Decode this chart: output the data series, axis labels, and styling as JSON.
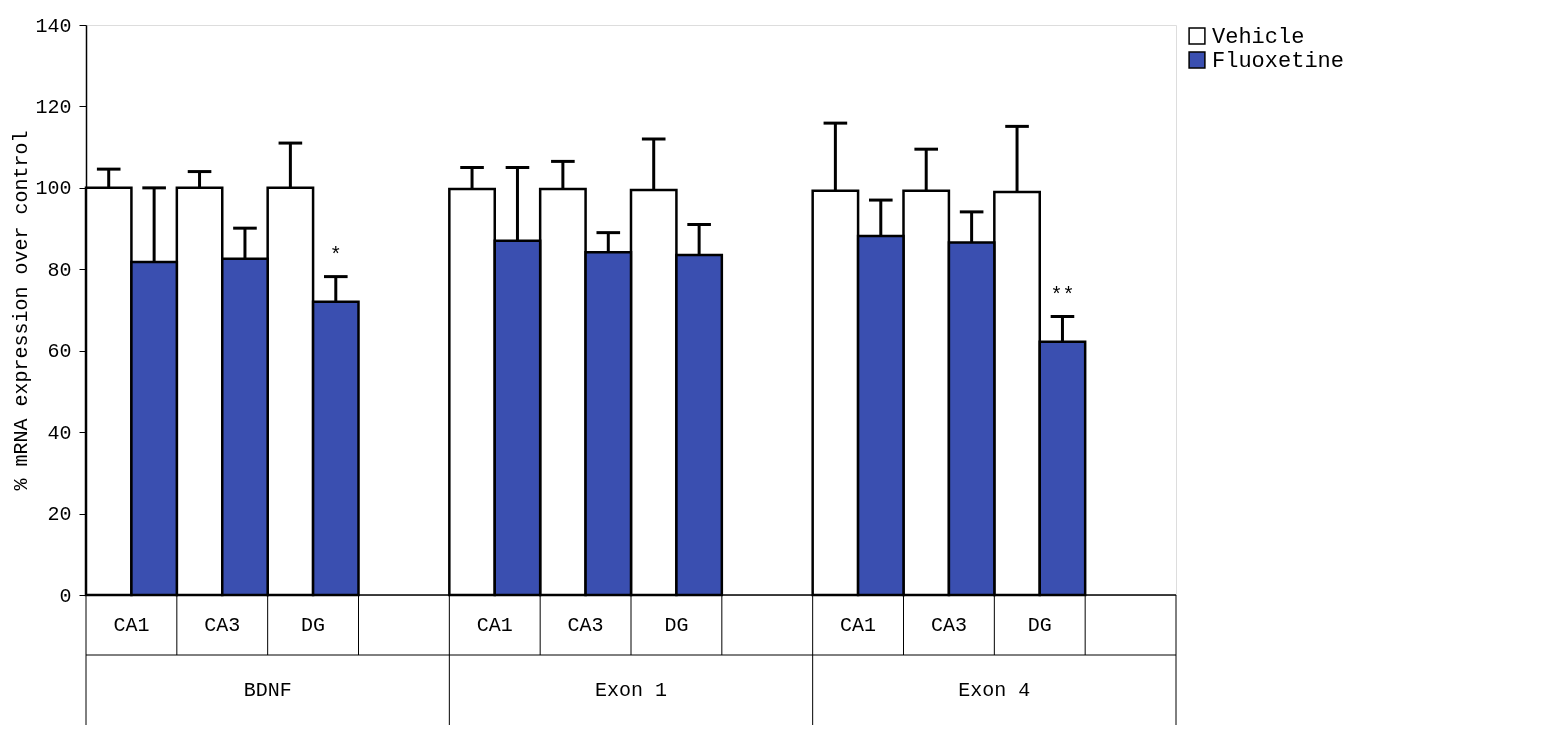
{
  "chart_data": {
    "type": "bar",
    "categories": [
      "CA1",
      "CA3",
      "DG",
      "CA1",
      "CA3",
      "DG",
      "CA1",
      "CA3",
      "DG"
    ],
    "ylabel": "% mRNA expression over control",
    "annotations": [
      "BDNF",
      "Exon 1",
      "Exon 4"
    ],
    "series": [
      {
        "name": "Vehicle",
        "color": "#ffffff",
        "values": [
          100,
          100,
          100,
          99.7,
          99.7,
          99.5,
          99.3,
          99.3,
          99
        ],
        "errors": [
          [
            100,
            104.6
          ],
          [
            100,
            104
          ],
          [
            100,
            111
          ],
          [
            99.7,
            105
          ],
          [
            99.7,
            106.5
          ],
          [
            99.5,
            112
          ],
          [
            99.3,
            115.9
          ],
          [
            99.3,
            109.5
          ],
          [
            99,
            115.1
          ]
        ]
      },
      {
        "name": "Fluoxetine",
        "color": "#3a4fb0",
        "values": [
          81.8,
          82.6,
          72,
          87,
          84.2,
          83.5,
          88.2,
          86.6,
          62.2
        ],
        "errors": [
          [
            81.8,
            100
          ],
          [
            82.6,
            90.1
          ],
          [
            72,
            78.2
          ],
          [
            87,
            105
          ],
          [
            84.2,
            89
          ],
          [
            83.5,
            91
          ],
          [
            88.2,
            97
          ],
          [
            86.6,
            94.1
          ],
          [
            62.2,
            68.4
          ]
        ],
        "value_labels": [
          null,
          null,
          "*",
          null,
          null,
          null,
          null,
          null,
          "**"
        ]
      }
    ],
    "ylim": [
      0,
      140
    ],
    "yticks": [
      0,
      20,
      40,
      60,
      80,
      100,
      120,
      140
    ],
    "grid": false,
    "legend": "right"
  }
}
